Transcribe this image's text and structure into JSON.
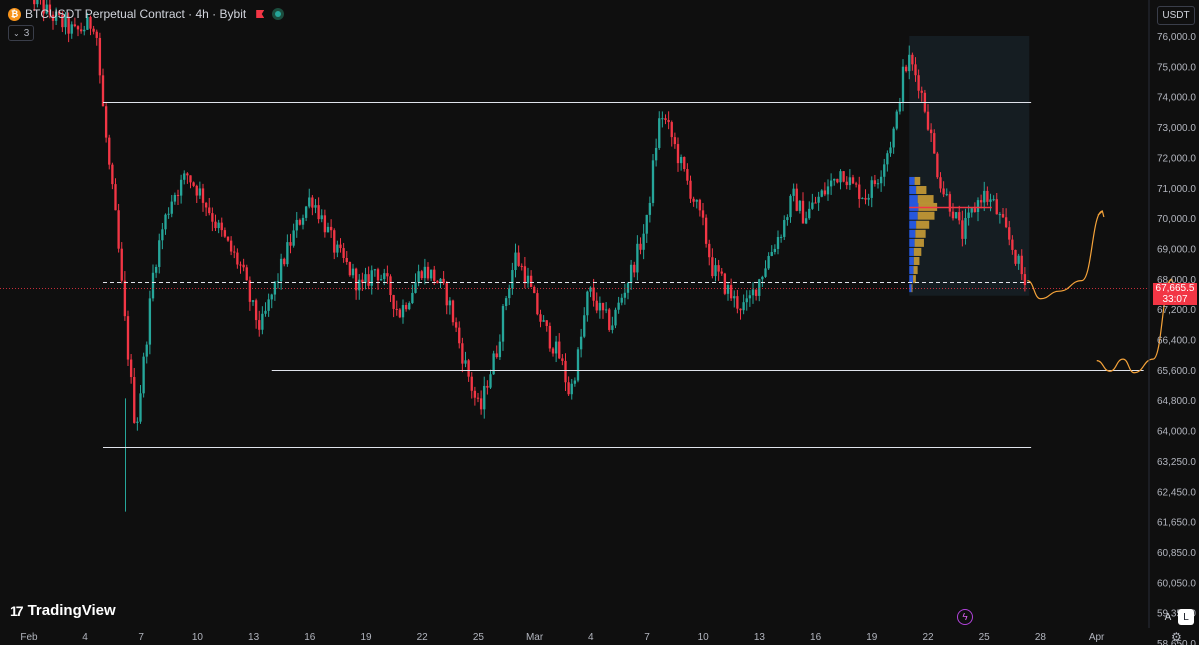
{
  "header": {
    "coin_glyph": "₿",
    "title": "BTCUSDT Perpetual Contract · 4h · Bybit",
    "indicator_count": "3",
    "currency": "USDT"
  },
  "logo_text": "TradingView",
  "scale_buttons": {
    "auto": "A",
    "log": "L"
  },
  "current_price": {
    "price": "67,665.5",
    "countdown": "33:07"
  },
  "colors": {
    "up": "#26a69a",
    "down": "#f23645",
    "projection": "#f5a33a",
    "vp_buy": "#2962ff",
    "vp_sell": "#d4a437"
  },
  "chart_data": {
    "type": "candlestick",
    "symbol": "BTCUSDT",
    "timeframe": "4h",
    "ylim": [
      58100,
      76600
    ],
    "price_ticks": [
      "76,000.0",
      "75,000.0",
      "74,000.0",
      "73,000.0",
      "72,000.0",
      "71,000.0",
      "70,000.0",
      "69,000.0",
      "68,000.0",
      "67,200.0",
      "66,400.0",
      "65,600.0",
      "64,800.0",
      "64,000.0",
      "63,250.0",
      "62,450.0",
      "61,650.0",
      "60,850.0",
      "60,050.0",
      "59,350.0",
      "58,650.0"
    ],
    "time_ticks": [
      "Feb",
      "4",
      "7",
      "10",
      "13",
      "16",
      "19",
      "22",
      "25",
      "Mar",
      "4",
      "7",
      "10",
      "13",
      "16",
      "19",
      "22",
      "25",
      "28",
      "Apr"
    ],
    "series_path": [
      [
        0,
        77500
      ],
      [
        1.0,
        76800
      ],
      [
        2.5,
        76100
      ],
      [
        3.6,
        76500
      ],
      [
        3.9,
        74200
      ],
      [
        4.3,
        71800
      ],
      [
        4.7,
        69800
      ],
      [
        5.2,
        66300
      ],
      [
        5.75,
        62950
      ],
      [
        6.3,
        65900
      ],
      [
        6.7,
        68300
      ],
      [
        7.2,
        69700
      ],
      [
        7.7,
        70700
      ],
      [
        8.5,
        71400
      ],
      [
        9.3,
        70700
      ],
      [
        10.0,
        69800
      ],
      [
        10.8,
        68900
      ],
      [
        11.4,
        68300
      ],
      [
        11.9,
        67100
      ],
      [
        12.4,
        66300
      ],
      [
        13.0,
        67400
      ],
      [
        13.7,
        68700
      ],
      [
        14.4,
        69800
      ],
      [
        15.1,
        70700
      ],
      [
        15.8,
        69800
      ],
      [
        16.4,
        68900
      ],
      [
        17.1,
        68300
      ],
      [
        17.8,
        67600
      ],
      [
        18.5,
        68300
      ],
      [
        19.2,
        67700
      ],
      [
        19.8,
        66800
      ],
      [
        20.4,
        67500
      ],
      [
        21.0,
        68300
      ],
      [
        21.7,
        68000
      ],
      [
        22.4,
        67300
      ],
      [
        23.1,
        65600
      ],
      [
        23.7,
        64300
      ],
      [
        24.1,
        63500
      ],
      [
        24.5,
        64600
      ],
      [
        25.0,
        65600
      ],
      [
        25.5,
        67400
      ],
      [
        26.0,
        68700
      ],
      [
        26.6,
        68000
      ],
      [
        27.2,
        66800
      ],
      [
        27.8,
        66000
      ],
      [
        28.4,
        65300
      ],
      [
        28.9,
        64100
      ],
      [
        29.4,
        65600
      ],
      [
        29.9,
        67600
      ],
      [
        30.5,
        66900
      ],
      [
        31.1,
        66400
      ],
      [
        31.8,
        67600
      ],
      [
        32.4,
        68600
      ],
      [
        33.0,
        69800
      ],
      [
        33.4,
        72000
      ],
      [
        33.75,
        73500
      ],
      [
        34.3,
        72700
      ],
      [
        34.9,
        71600
      ],
      [
        35.5,
        70600
      ],
      [
        36.0,
        69700
      ],
      [
        36.5,
        68300
      ],
      [
        37.1,
        67800
      ],
      [
        37.7,
        67200
      ],
      [
        38.3,
        67000
      ],
      [
        38.9,
        67800
      ],
      [
        39.5,
        68700
      ],
      [
        40.2,
        69600
      ],
      [
        40.8,
        70700
      ],
      [
        41.4,
        70000
      ],
      [
        42.0,
        70500
      ],
      [
        42.7,
        71000
      ],
      [
        43.4,
        71600
      ],
      [
        44.0,
        71000
      ],
      [
        44.7,
        70700
      ],
      [
        45.3,
        71300
      ],
      [
        45.9,
        72300
      ],
      [
        46.3,
        73100
      ],
      [
        46.6,
        74600
      ],
      [
        47.0,
        75200
      ],
      [
        47.5,
        74500
      ],
      [
        48.0,
        73200
      ],
      [
        48.4,
        71800
      ],
      [
        48.8,
        70900
      ],
      [
        49.3,
        70300
      ],
      [
        49.8,
        69400
      ],
      [
        50.4,
        70200
      ],
      [
        50.9,
        70800
      ],
      [
        51.5,
        70400
      ],
      [
        52.0,
        69700
      ],
      [
        52.5,
        69000
      ],
      [
        52.9,
        68300
      ],
      [
        53.2,
        67700
      ]
    ],
    "overlay_levels": [
      {
        "price": 73820,
        "from_day": 4.0,
        "to_day": 53.5,
        "style": "solid"
      },
      {
        "price": 64950,
        "from_day": 13.0,
        "to_day": 59.5,
        "style": "solid"
      },
      {
        "price": 62400,
        "from_day": 4.0,
        "to_day": 53.5,
        "style": "solid"
      },
      {
        "price": 67865,
        "from_day": 4.0,
        "to_day": 53.5,
        "style": "dashed"
      },
      {
        "price": 70340,
        "from_day": 47.0,
        "to_day": 51.4,
        "style": "poc"
      }
    ],
    "volume_profile": {
      "from_day": 47.0,
      "to_day": 53.4,
      "price_low": 67400,
      "price_high": 76000,
      "rows": [
        {
          "price": 71200,
          "buy": 0.35,
          "sell": 0.3
        },
        {
          "price": 70900,
          "buy": 0.45,
          "sell": 0.55
        },
        {
          "price": 70600,
          "buy": 0.55,
          "sell": 0.85
        },
        {
          "price": 70340,
          "buy": 0.6,
          "sell": 1.0
        },
        {
          "price": 70050,
          "buy": 0.55,
          "sell": 0.9
        },
        {
          "price": 69750,
          "buy": 0.45,
          "sell": 0.7
        },
        {
          "price": 69450,
          "buy": 0.4,
          "sell": 0.55
        },
        {
          "price": 69150,
          "buy": 0.35,
          "sell": 0.5
        },
        {
          "price": 68850,
          "buy": 0.3,
          "sell": 0.4
        },
        {
          "price": 68550,
          "buy": 0.3,
          "sell": 0.3
        },
        {
          "price": 68250,
          "buy": 0.28,
          "sell": 0.22
        },
        {
          "price": 67950,
          "buy": 0.25,
          "sell": 0.15
        },
        {
          "price": 67650,
          "buy": 0.15,
          "sell": 0.05
        }
      ]
    },
    "projections": [
      [
        [
          53.3,
          67900
        ],
        [
          54.0,
          67300
        ],
        [
          55.0,
          67550
        ],
        [
          56.2,
          67900
        ],
        [
          57.3,
          70200
        ]
      ],
      [
        [
          57.0,
          65250
        ],
        [
          57.7,
          64900
        ],
        [
          58.4,
          65300
        ],
        [
          59.0,
          64850
        ],
        [
          60.0,
          65300
        ],
        [
          61.0,
          67950
        ]
      ]
    ]
  }
}
